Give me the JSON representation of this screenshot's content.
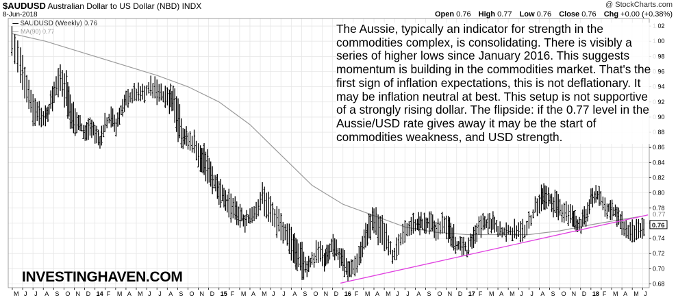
{
  "header": {
    "symbol": "$AUDUSD",
    "description": "Australian Dollar to US Dollar (NBD)",
    "exchange": "INDX",
    "date": "8-Jun-2018",
    "copyright": "@ StockCharts.com",
    "ohlc": [
      {
        "label": "Open",
        "value": "0.76"
      },
      {
        "label": "High",
        "value": "0.77"
      },
      {
        "label": "Low",
        "value": "0.76"
      },
      {
        "label": "Close",
        "value": "0.76"
      }
    ],
    "change_label": "Chg",
    "change_value": "+0.00 (+0.38%)"
  },
  "legend": {
    "price_series": "$AUDUSD (Weekly) 0.76",
    "ma_series": "MA(90) 0.77"
  },
  "commentary": "The Aussie, typically an indicator for strength in the commodities complex, is consolidating. There is visibly a series of higher lows since January 2016. This suggests momentum is building in the commodities market. That's the first sign of inflation expectations, this is not deflationary. It may be inflation neutral at best. This setup is not supportive of a strongly rising dollar. The flipside: if the 0.77 level in the Aussie/USD rate gives away it may be the start of commodities weakness, and USD strength.",
  "watermark": "INVESTINGHAVEN.COM",
  "colors": {
    "price": "#000000",
    "ma": "#9a9a9a",
    "trendline": "#e040e0",
    "grid": "#e6e6e6",
    "last_label_box": "#000000"
  },
  "chart_data": {
    "type": "line",
    "style": "weekly high-low price bars with moving average and trendline",
    "y_axis": {
      "ticks": [
        "0.68",
        "0.70",
        "0.72",
        "0.74",
        "0.76",
        "0.78",
        "0.80",
        "0.82",
        "0.84",
        "0.86",
        "0.88",
        "0.90",
        "0.92",
        "0.94",
        "0.96",
        "0.98",
        "1.00",
        "1.02"
      ],
      "ylim": [
        0.675,
        1.03
      ],
      "position": "right",
      "last_price_label": "0.76",
      "ma_label": "0.77"
    },
    "x_axis": {
      "ticks": [
        "M",
        "J",
        "J",
        "A",
        "S",
        "O",
        "N",
        "D",
        "14",
        "F",
        "M",
        "A",
        "M",
        "J",
        "J",
        "A",
        "S",
        "O",
        "N",
        "D",
        "15",
        "F",
        "M",
        "A",
        "M",
        "J",
        "J",
        "A",
        "S",
        "O",
        "N",
        "D",
        "16",
        "F",
        "M",
        "A",
        "M",
        "J",
        "J",
        "A",
        "S",
        "O",
        "N",
        "D",
        "17",
        "F",
        "M",
        "A",
        "M",
        "J",
        "J",
        "A",
        "S",
        "O",
        "N",
        "D",
        "18",
        "F",
        "M",
        "A",
        "M",
        "J"
      ],
      "year_ticks": [
        "14",
        "15",
        "16",
        "17",
        "18"
      ],
      "xlim": [
        2013.3,
        2018.47
      ]
    },
    "grid": true,
    "series": [
      {
        "name": "$AUDUSD (Weekly)",
        "x": [
          2013.33,
          2013.4,
          2013.45,
          2013.5,
          2013.55,
          2013.6,
          2013.63,
          2013.67,
          2013.72,
          2013.77,
          2013.8,
          2013.84,
          2013.88,
          2013.92,
          2013.96,
          2014.0,
          2014.04,
          2014.08,
          2014.13,
          2014.17,
          2014.21,
          2014.25,
          2014.3,
          2014.35,
          2014.4,
          2014.45,
          2014.5,
          2014.55,
          2014.6,
          2014.63,
          2014.67,
          2014.71,
          2014.75,
          2014.8,
          2014.85,
          2014.88,
          2014.92,
          2014.96,
          2015.0,
          2015.04,
          2015.08,
          2015.13,
          2015.17,
          2015.21,
          2015.25,
          2015.3,
          2015.35,
          2015.4,
          2015.45,
          2015.5,
          2015.55,
          2015.6,
          2015.63,
          2015.67,
          2015.71,
          2015.75,
          2015.8,
          2015.85,
          2015.88,
          2015.92,
          2015.96,
          2016.0,
          2016.04,
          2016.08,
          2016.13,
          2016.17,
          2016.21,
          2016.25,
          2016.3,
          2016.35,
          2016.4,
          2016.45,
          2016.5,
          2016.55,
          2016.6,
          2016.63,
          2016.67,
          2016.71,
          2016.75,
          2016.8,
          2016.85,
          2016.88,
          2016.92,
          2016.96,
          2017.0,
          2017.04,
          2017.08,
          2017.13,
          2017.17,
          2017.21,
          2017.25,
          2017.3,
          2017.35,
          2017.4,
          2017.45,
          2017.5,
          2017.55,
          2017.6,
          2017.63,
          2017.67,
          2017.71,
          2017.75,
          2017.8,
          2017.85,
          2017.88,
          2017.92,
          2017.96,
          2018.0,
          2018.04,
          2018.08,
          2018.13,
          2018.17,
          2018.21,
          2018.25,
          2018.3,
          2018.35,
          2018.4,
          2018.44
        ],
        "high": [
          1.02,
          0.99,
          0.96,
          0.93,
          0.92,
          0.91,
          0.92,
          0.95,
          0.97,
          0.96,
          0.93,
          0.91,
          0.9,
          0.89,
          0.9,
          0.89,
          0.88,
          0.9,
          0.91,
          0.9,
          0.92,
          0.93,
          0.94,
          0.94,
          0.94,
          0.95,
          0.95,
          0.94,
          0.94,
          0.94,
          0.93,
          0.89,
          0.88,
          0.88,
          0.86,
          0.86,
          0.85,
          0.83,
          0.82,
          0.81,
          0.8,
          0.79,
          0.78,
          0.77,
          0.78,
          0.79,
          0.81,
          0.8,
          0.78,
          0.77,
          0.76,
          0.75,
          0.74,
          0.73,
          0.71,
          0.72,
          0.74,
          0.72,
          0.73,
          0.74,
          0.73,
          0.73,
          0.71,
          0.71,
          0.73,
          0.75,
          0.77,
          0.78,
          0.77,
          0.76,
          0.73,
          0.74,
          0.76,
          0.77,
          0.77,
          0.77,
          0.77,
          0.77,
          0.76,
          0.77,
          0.77,
          0.76,
          0.74,
          0.74,
          0.73,
          0.75,
          0.76,
          0.77,
          0.77,
          0.77,
          0.76,
          0.76,
          0.76,
          0.76,
          0.76,
          0.77,
          0.79,
          0.81,
          0.81,
          0.8,
          0.8,
          0.79,
          0.79,
          0.78,
          0.77,
          0.77,
          0.78,
          0.8,
          0.81,
          0.8,
          0.79,
          0.79,
          0.78,
          0.77,
          0.76,
          0.76,
          0.76,
          0.77
        ],
        "low": [
          0.98,
          0.95,
          0.92,
          0.89,
          0.89,
          0.89,
          0.9,
          0.92,
          0.93,
          0.91,
          0.89,
          0.88,
          0.88,
          0.87,
          0.87,
          0.87,
          0.86,
          0.88,
          0.89,
          0.88,
          0.9,
          0.91,
          0.92,
          0.92,
          0.92,
          0.93,
          0.92,
          0.92,
          0.91,
          0.91,
          0.87,
          0.86,
          0.86,
          0.85,
          0.83,
          0.82,
          0.81,
          0.8,
          0.79,
          0.78,
          0.77,
          0.76,
          0.76,
          0.75,
          0.76,
          0.77,
          0.78,
          0.76,
          0.75,
          0.74,
          0.73,
          0.71,
          0.7,
          0.69,
          0.69,
          0.7,
          0.71,
          0.7,
          0.71,
          0.72,
          0.71,
          0.7,
          0.68,
          0.69,
          0.7,
          0.72,
          0.74,
          0.75,
          0.73,
          0.72,
          0.71,
          0.72,
          0.74,
          0.74,
          0.75,
          0.75,
          0.75,
          0.75,
          0.74,
          0.75,
          0.74,
          0.73,
          0.72,
          0.72,
          0.72,
          0.73,
          0.74,
          0.75,
          0.75,
          0.75,
          0.74,
          0.74,
          0.74,
          0.74,
          0.74,
          0.75,
          0.77,
          0.78,
          0.78,
          0.78,
          0.77,
          0.77,
          0.76,
          0.76,
          0.75,
          0.75,
          0.76,
          0.78,
          0.79,
          0.78,
          0.77,
          0.77,
          0.76,
          0.75,
          0.74,
          0.74,
          0.74,
          0.75
        ]
      },
      {
        "name": "MA(90)",
        "x": [
          2013.33,
          2013.6,
          2013.9,
          2014.2,
          2014.5,
          2014.75,
          2015.0,
          2015.25,
          2015.5,
          2015.75,
          2016.0,
          2016.25,
          2016.5,
          2016.75,
          2017.0,
          2017.25,
          2017.5,
          2017.75,
          2018.0,
          2018.25,
          2018.44
        ],
        "values": [
          1.01,
          1.0,
          0.985,
          0.97,
          0.955,
          0.94,
          0.92,
          0.89,
          0.85,
          0.81,
          0.785,
          0.77,
          0.755,
          0.748,
          0.745,
          0.745,
          0.745,
          0.75,
          0.758,
          0.765,
          0.77
        ]
      },
      {
        "name": "Trendline",
        "x": [
          2015.98,
          2018.46
        ],
        "values": [
          0.681,
          0.771
        ]
      }
    ]
  }
}
